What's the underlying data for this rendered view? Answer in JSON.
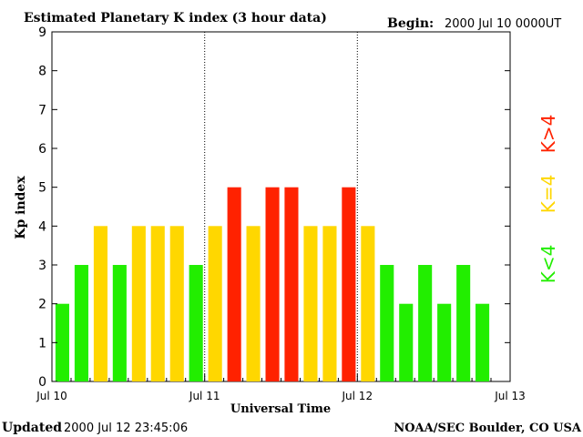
{
  "chart_data": {
    "type": "bar",
    "title": "Estimated Planetary K index (3 hour data)",
    "begin_label": "Begin:",
    "begin_value": "2000 Jul 10 0000UT",
    "xlabel": "Universal Time",
    "ylabel": "Kp index",
    "ylim": [
      0,
      9
    ],
    "yticks": [
      "0",
      "1",
      "2",
      "3",
      "4",
      "5",
      "6",
      "7",
      "8",
      "9"
    ],
    "xticks": [
      "Jul 10",
      "Jul 11",
      "Jul 12",
      "Jul 13"
    ],
    "values": [
      2,
      3,
      4,
      3,
      4,
      4,
      4,
      3,
      4,
      5,
      4,
      5,
      5,
      4,
      4,
      5,
      4,
      3,
      2,
      3,
      2,
      3,
      2
    ],
    "bars_per_day": 8,
    "days": 3,
    "day_dividers": true,
    "legend": [
      {
        "label": "K<4",
        "color": "#22ee00"
      },
      {
        "label": "K=4",
        "color": "#ffd700"
      },
      {
        "label": "K>4",
        "color": "#ff2200"
      }
    ],
    "legend_placement": "right"
  },
  "footer": {
    "updated_label": "Updated",
    "updated_value": "2000 Jul 12 23:45:06",
    "source": "NOAA/SEC Boulder, CO USA"
  },
  "colors": {
    "low": "#22ee00",
    "mid": "#ffd700",
    "high": "#ff2200",
    "axis": "#000000"
  }
}
